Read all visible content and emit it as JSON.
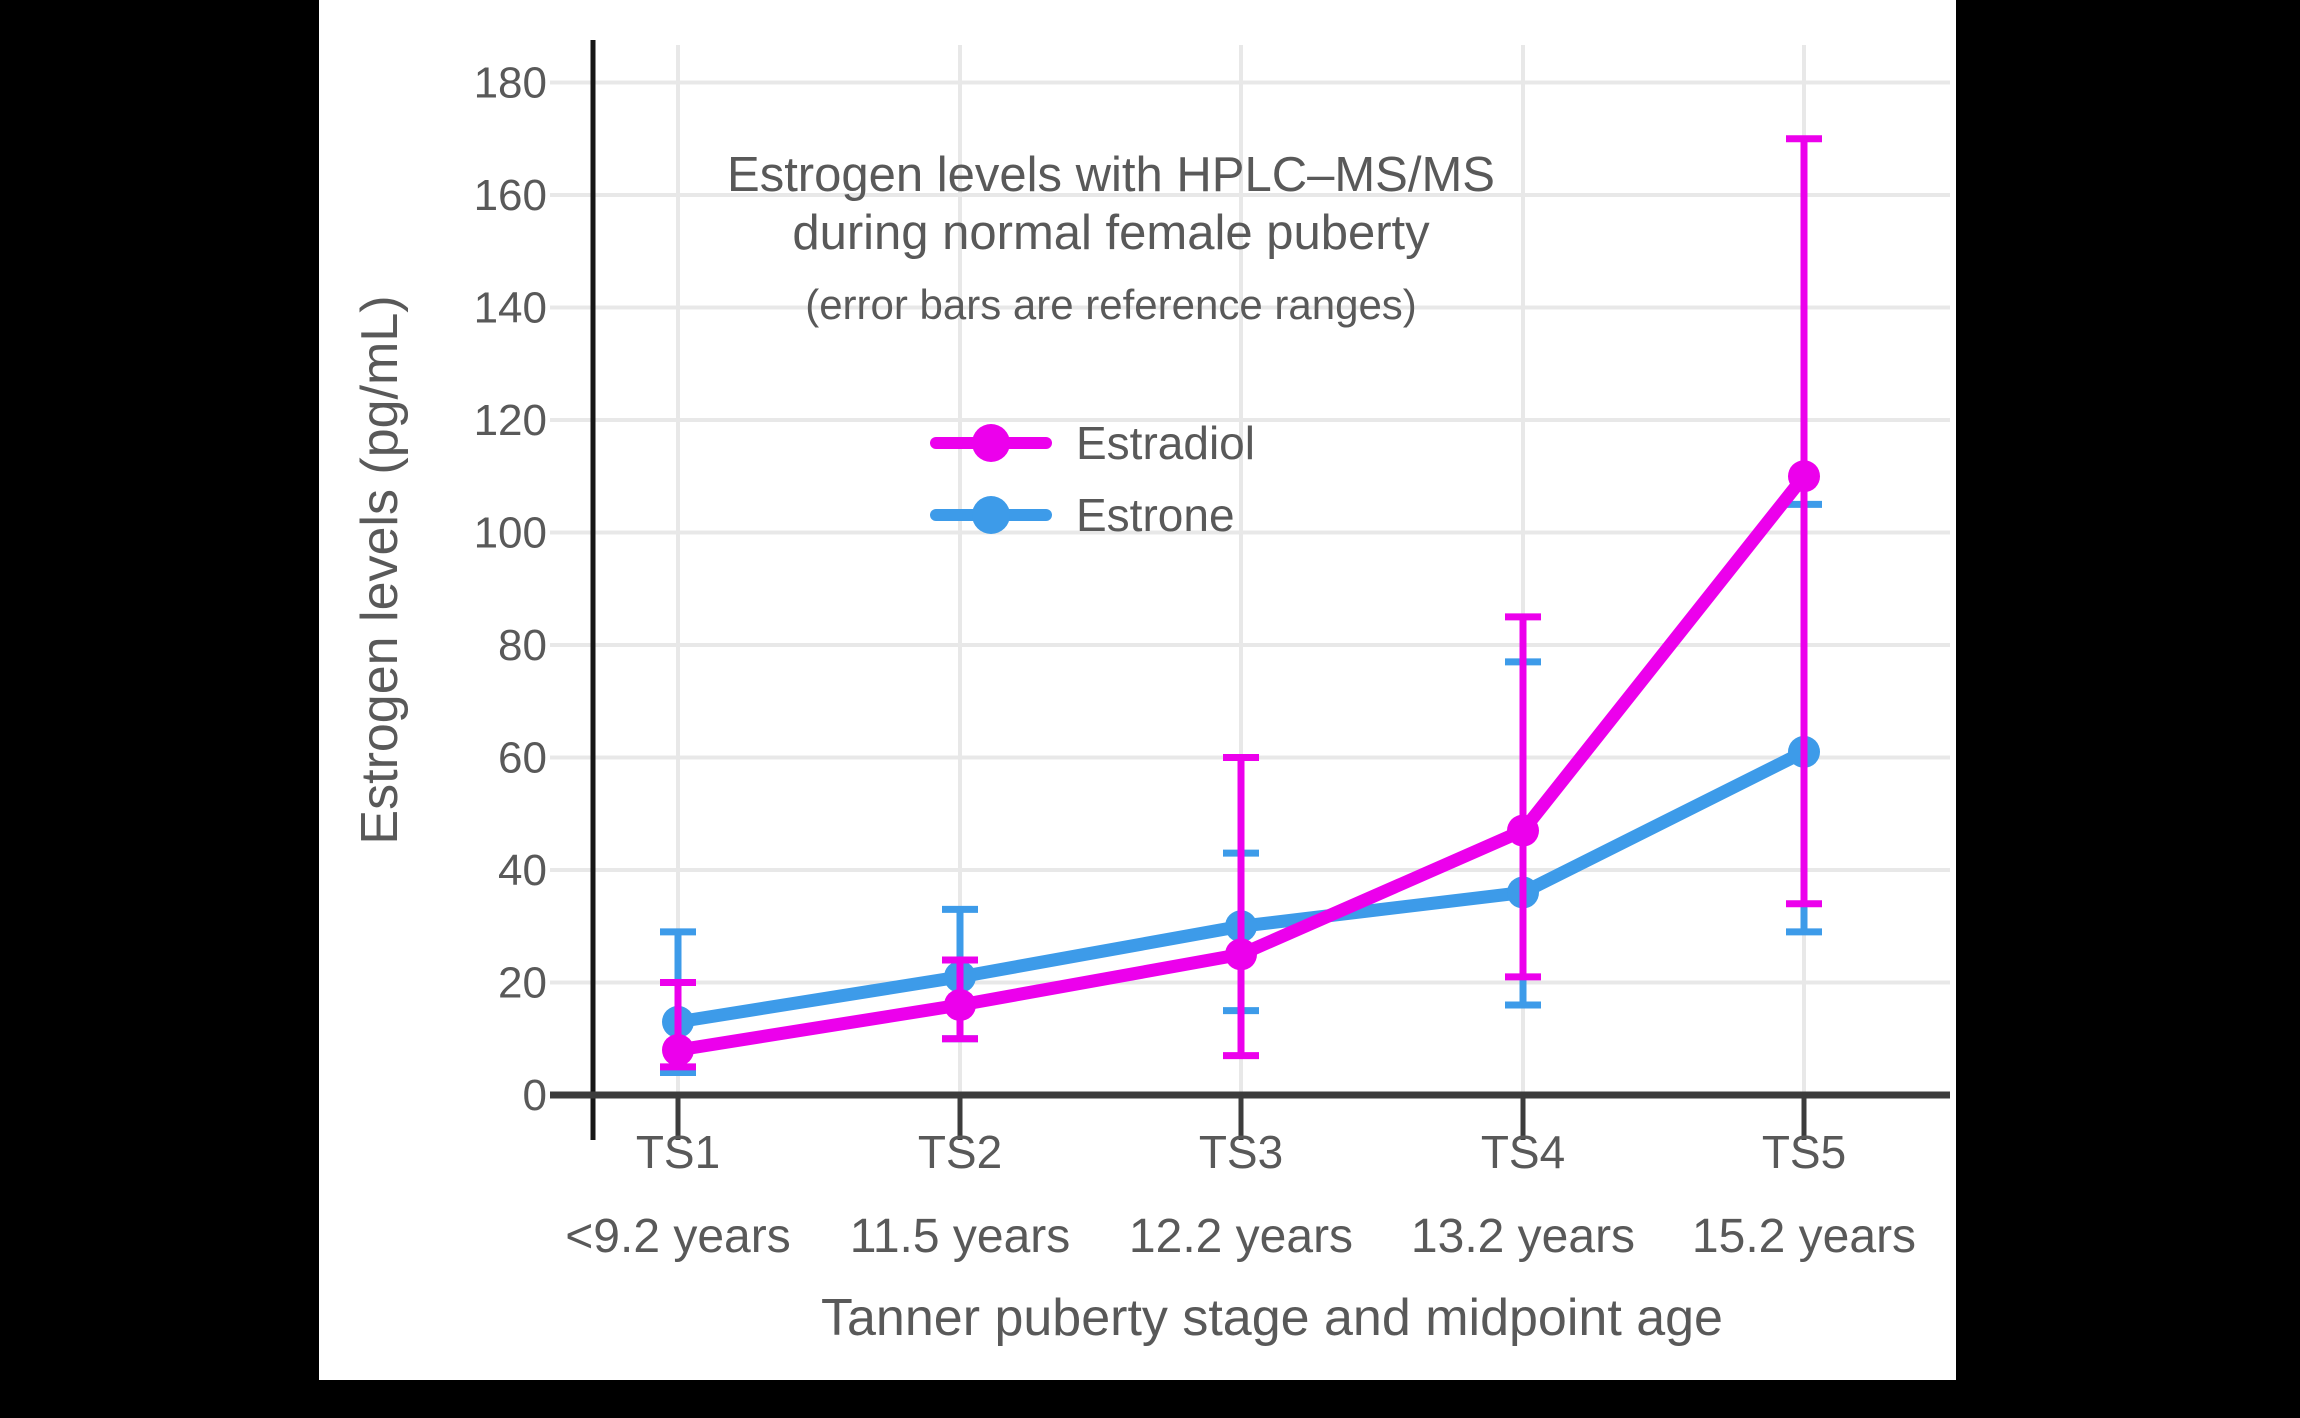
{
  "style": {
    "page_background": "#000000",
    "canvas_background": "#FFFFFF",
    "text_color": "#595959",
    "grid_color": "#E8E8E8",
    "axis_color": "#3C3C3C"
  },
  "chart_data": {
    "type": "line",
    "title_line1": "Estrogen levels with HPLC–MS/MS",
    "title_line2": "during normal female puberty",
    "subtitle": "(error bars are reference ranges)",
    "xlabel": "Tanner puberty stage and midpoint age",
    "ylabel": "Estrogen levels (pg/mL)",
    "categories": [
      "TS1",
      "TS2",
      "TS3",
      "TS4",
      "TS5"
    ],
    "category_sublabels": [
      "<9.2 years",
      "11.5 years",
      "12.2 years",
      "13.2 years",
      "15.2 years"
    ],
    "y_ticks": [
      0,
      20,
      40,
      60,
      80,
      100,
      120,
      140,
      160,
      180
    ],
    "ylim": [
      0,
      188
    ],
    "grid": true,
    "legend_position": "inside-upper-left",
    "error_bars": "reference ranges",
    "series": [
      {
        "name": "Estrone",
        "color": "#3D9BE9",
        "values": [
          13,
          21,
          30,
          36,
          61
        ],
        "error_low": [
          4,
          10,
          15,
          16,
          29
        ],
        "error_high": [
          29,
          33,
          43,
          77,
          105
        ]
      },
      {
        "name": "Estradiol",
        "color": "#EC00EC",
        "values": [
          8,
          16,
          25,
          47,
          110
        ],
        "error_low": [
          5,
          10,
          7,
          21,
          34
        ],
        "error_high": [
          20,
          24,
          60,
          85,
          170
        ]
      }
    ],
    "legend_order_top_to_bottom": [
      "Estradiol",
      "Estrone"
    ]
  }
}
